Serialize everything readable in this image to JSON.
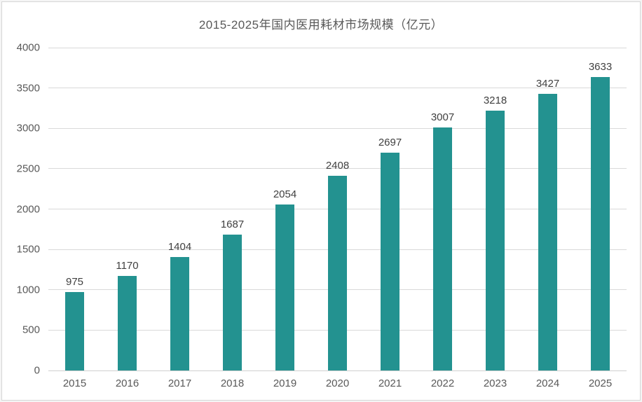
{
  "chart_data": {
    "type": "bar",
    "title": "2015-2025年国内医用耗材市场规模（亿元）",
    "categories": [
      "2015",
      "2016",
      "2017",
      "2018",
      "2019",
      "2020",
      "2021",
      "2022",
      "2023",
      "2024",
      "2025"
    ],
    "values": [
      975,
      1170,
      1404,
      1687,
      2054,
      2408,
      2697,
      3007,
      3218,
      3427,
      3633
    ],
    "xlabel": "",
    "ylabel": "",
    "ylim": [
      0,
      4000
    ],
    "ytick_step": 500,
    "ytick_labels": [
      "0",
      "500",
      "1000",
      "1500",
      "2000",
      "2500",
      "3000",
      "3500",
      "4000"
    ],
    "grid": true,
    "legend": "none",
    "value_labels_shown": true,
    "colors": {
      "bar": "#239290",
      "gridline": "#d9d9d9",
      "axis_line": "#d0d0d0",
      "title_text": "#595959",
      "axis_text": "#595959",
      "value_text": "#404040",
      "background": "#ffffff",
      "frame_border": "#d6d6d6"
    }
  }
}
